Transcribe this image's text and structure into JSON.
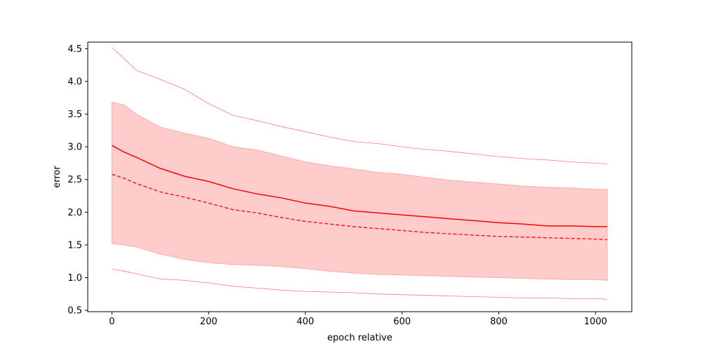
{
  "chart_data": {
    "type": "line",
    "xlabel": "epoch relative",
    "ylabel": "error",
    "xlim": [
      -50,
      1075
    ],
    "ylim": [
      0.48,
      4.6
    ],
    "x_ticks": [
      0,
      200,
      400,
      600,
      800,
      1000
    ],
    "y_ticks": [
      0.5,
      1.0,
      1.5,
      2.0,
      2.5,
      3.0,
      3.5,
      4.0,
      4.5
    ],
    "grid": false,
    "colors": {
      "line": "#ff0000",
      "band_fill": "#ffcccc",
      "band_edge": "#ffaaaa",
      "envelope": "#f08080"
    },
    "x": [
      0,
      25,
      50,
      100,
      150,
      200,
      250,
      300,
      350,
      400,
      450,
      500,
      550,
      600,
      650,
      700,
      750,
      800,
      850,
      900,
      950,
      1000,
      1024
    ],
    "series": [
      {
        "role": "solid-line",
        "values": [
          3.02,
          2.92,
          2.84,
          2.67,
          2.55,
          2.47,
          2.36,
          2.28,
          2.22,
          2.14,
          2.09,
          2.02,
          1.99,
          1.96,
          1.93,
          1.9,
          1.87,
          1.84,
          1.82,
          1.79,
          1.79,
          1.78,
          1.78
        ]
      },
      {
        "role": "dashed-line",
        "values": [
          2.58,
          2.52,
          2.44,
          2.31,
          2.23,
          2.14,
          2.04,
          1.99,
          1.92,
          1.86,
          1.82,
          1.78,
          1.75,
          1.72,
          1.69,
          1.67,
          1.65,
          1.63,
          1.62,
          1.61,
          1.6,
          1.59,
          1.58
        ]
      },
      {
        "role": "band-upper",
        "values": [
          3.68,
          3.64,
          3.5,
          3.3,
          3.21,
          3.13,
          3.0,
          2.95,
          2.86,
          2.77,
          2.71,
          2.66,
          2.61,
          2.58,
          2.53,
          2.49,
          2.46,
          2.43,
          2.4,
          2.38,
          2.37,
          2.35,
          2.35
        ]
      },
      {
        "role": "band-lower",
        "values": [
          1.52,
          1.5,
          1.47,
          1.36,
          1.28,
          1.23,
          1.2,
          1.19,
          1.17,
          1.14,
          1.1,
          1.07,
          1.05,
          1.04,
          1.03,
          1.02,
          1.01,
          1.0,
          0.99,
          0.98,
          0.97,
          0.97,
          0.96
        ]
      },
      {
        "role": "envelope-upper",
        "values": [
          4.52,
          4.35,
          4.17,
          4.03,
          3.88,
          3.66,
          3.48,
          3.4,
          3.31,
          3.23,
          3.15,
          3.08,
          3.05,
          3.0,
          2.96,
          2.93,
          2.89,
          2.85,
          2.82,
          2.8,
          2.77,
          2.75,
          2.74
        ]
      },
      {
        "role": "envelope-lower",
        "values": [
          1.13,
          1.1,
          1.06,
          0.98,
          0.96,
          0.92,
          0.87,
          0.84,
          0.81,
          0.79,
          0.78,
          0.77,
          0.75,
          0.74,
          0.73,
          0.72,
          0.71,
          0.7,
          0.69,
          0.69,
          0.68,
          0.68,
          0.67
        ]
      }
    ]
  }
}
